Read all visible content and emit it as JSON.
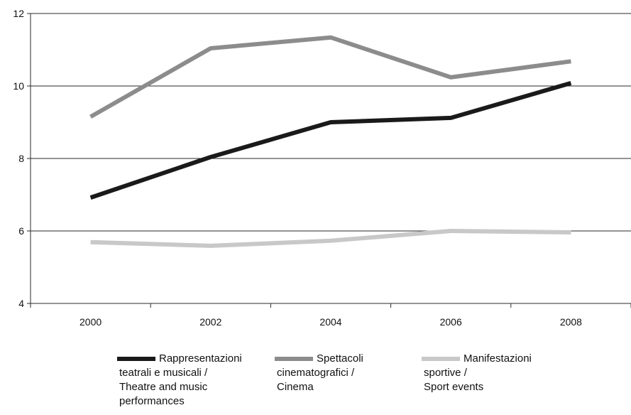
{
  "chart_data": {
    "type": "line",
    "title": "",
    "xlabel": "",
    "ylabel": "",
    "x": [
      "2000",
      "2002",
      "2004",
      "2006",
      "2008"
    ],
    "ylim": [
      4,
      12
    ],
    "yticks": [
      "4",
      "6",
      "8",
      "10",
      "12"
    ],
    "grid": "horizontal",
    "legend_position": "bottom",
    "series": [
      {
        "name": "Rappresentazioni teatrali e musicali / Theatre and music performances",
        "legend_lines": [
          "Rappresentazioni",
          "teatrali e musicali /",
          "Theatre and music",
          "performances"
        ],
        "color": "#1a1a1a",
        "values": [
          6.92,
          8.04,
          9.0,
          9.12,
          10.08
        ]
      },
      {
        "name": "Spettacoli cinematografici / Cinema",
        "legend_lines": [
          "Spettacoli",
          "cinematografici /",
          "Cinema"
        ],
        "color": "#8c8c8c",
        "values": [
          9.15,
          11.04,
          11.34,
          10.24,
          10.68
        ]
      },
      {
        "name": "Manifestazioni sportive / Sport events",
        "legend_lines": [
          "Manifestazioni",
          "sportive /",
          "Sport events"
        ],
        "color": "#c8c8c8",
        "values": [
          5.69,
          5.59,
          5.73,
          6.0,
          5.96
        ]
      }
    ]
  }
}
